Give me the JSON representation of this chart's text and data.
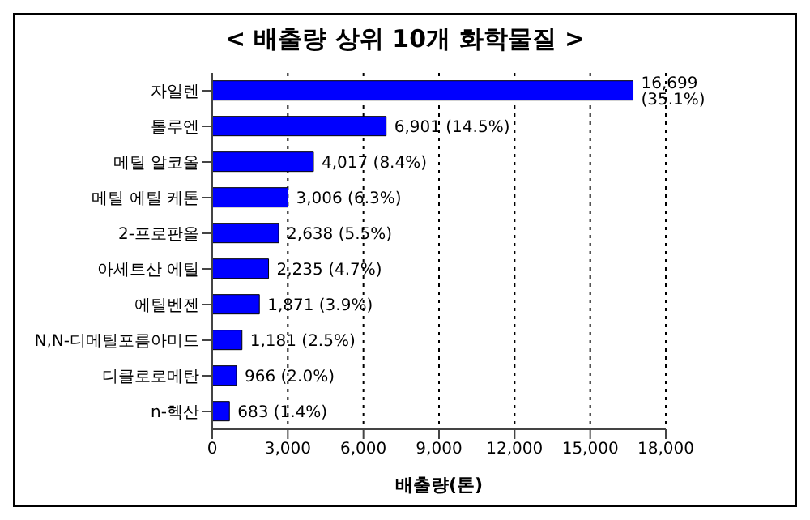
{
  "chart_data": {
    "type": "bar",
    "orientation": "horizontal",
    "title": "< 배출량 상위 10개 화학물질 >",
    "xlabel": "배출량(톤)",
    "categories": [
      "자일렌",
      "톨루엔",
      "메틸 알코올",
      "메틸 에틸 케톤",
      "2-프로판올",
      "아세트산 에틸",
      "에틸벤젠",
      "N,N-디메틸포름아미드",
      "디클로로메탄",
      "n-헥산"
    ],
    "values": [
      16699,
      6901,
      4017,
      3006,
      2638,
      2235,
      1871,
      1181,
      966,
      683
    ],
    "value_labels": [
      "16,699 (35.1%)",
      "6,901 (14.5%)",
      "4,017 (8.4%)",
      "3,006 (6.3%)",
      "2,638 (5.5%)",
      "2,235 (4.7%)",
      "1,871 (3.9%)",
      "1,181 (2.5%)",
      "966 (2.0%)",
      "683 (1.4%)"
    ],
    "color": "#0000ff",
    "xlim": [
      0,
      18000
    ],
    "xticks": [
      {
        "value": 0,
        "label": "0"
      },
      {
        "value": 3000,
        "label": "3,000"
      },
      {
        "value": 6000,
        "label": "6,000"
      },
      {
        "value": 9000,
        "label": "9,000"
      },
      {
        "value": 12000,
        "label": "12,000"
      },
      {
        "value": 15000,
        "label": "15,000"
      },
      {
        "value": 18000,
        "label": "18,000"
      }
    ],
    "grid": "x"
  }
}
